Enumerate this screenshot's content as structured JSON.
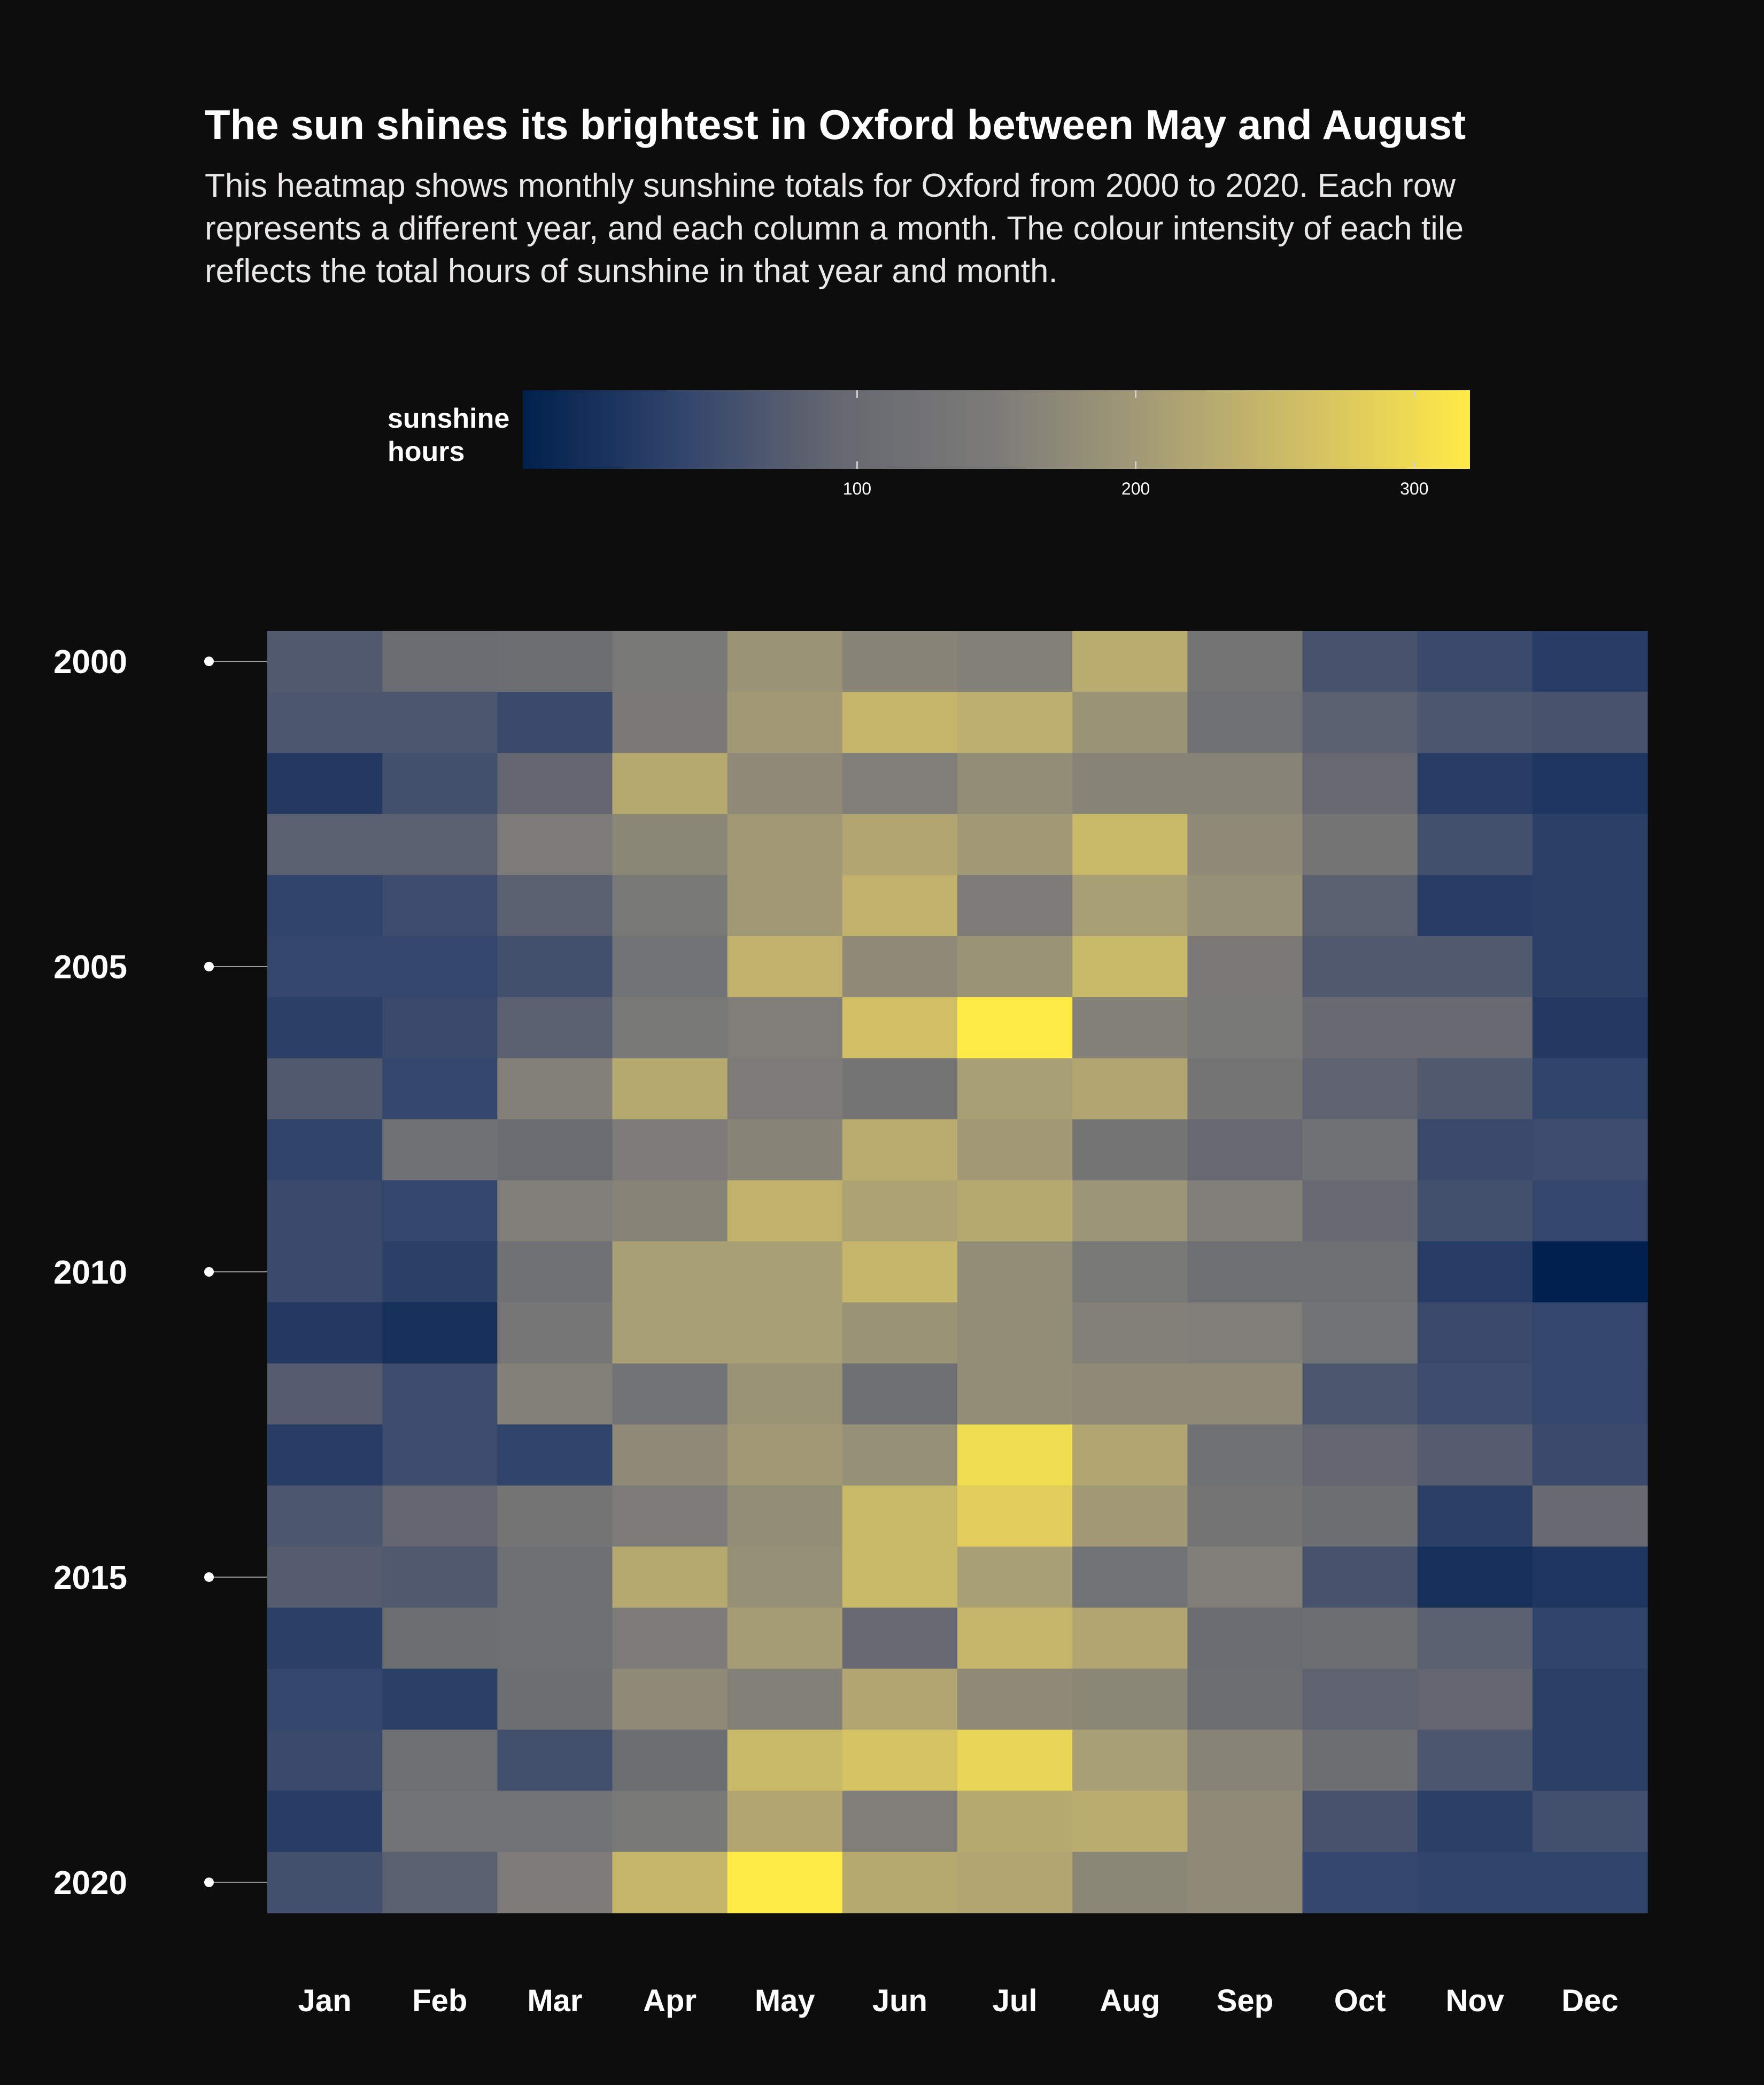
{
  "title": "The sun shines its brightest in Oxford between May and August",
  "subtitle": "This heatmap shows monthly sunshine totals for Oxford from 2000 to 2020. Each row represents a different year, and each column a month. The colour intensity of each tile reflects the total hours of sunshine in that year and month.",
  "colors": {
    "background": "#0e0d0e",
    "scale": [
      "#00204d",
      "#31446b",
      "#666870",
      "#7c7b78",
      "#a69d75",
      "#d3c164",
      "#ffea46"
    ]
  },
  "chart_data": {
    "type": "heatmap",
    "title": "The sun shines its brightest in Oxford between May and August",
    "legend": {
      "title_line1": "sunshine",
      "title_line2": "hours",
      "ticks": [
        100,
        200,
        300
      ],
      "tick_labels": [
        "100",
        "200",
        "300"
      ],
      "range": [
        -20,
        320
      ],
      "placement": "top"
    },
    "x_categories": [
      "Jan",
      "Feb",
      "Mar",
      "Apr",
      "May",
      "Jun",
      "Jul",
      "Aug",
      "Sep",
      "Oct",
      "Nov",
      "Dec"
    ],
    "y_categories": [
      "2000",
      "2001",
      "2002",
      "2003",
      "2004",
      "2005",
      "2006",
      "2007",
      "2008",
      "2009",
      "2010",
      "2011",
      "2012",
      "2013",
      "2014",
      "2015",
      "2016",
      "2017",
      "2018",
      "2019",
      "2020"
    ],
    "y_tick_labels": [
      "2000",
      "2005",
      "2010",
      "2015",
      "2020"
    ],
    "values": [
      [
        70,
        105,
        110,
        140,
        190,
        165,
        160,
        230,
        130,
        60,
        45,
        25
      ],
      [
        65,
        65,
        45,
        145,
        200,
        245,
        235,
        190,
        120,
        80,
        65,
        60
      ],
      [
        20,
        55,
        90,
        225,
        175,
        155,
        180,
        165,
        165,
        95,
        25,
        15
      ],
      [
        80,
        80,
        150,
        170,
        200,
        220,
        200,
        250,
        175,
        130,
        55,
        30
      ],
      [
        35,
        50,
        80,
        140,
        200,
        240,
        150,
        210,
        185,
        80,
        25,
        30
      ],
      [
        40,
        40,
        55,
        125,
        240,
        175,
        190,
        250,
        145,
        70,
        70,
        30
      ],
      [
        30,
        45,
        80,
        140,
        155,
        260,
        320,
        160,
        140,
        100,
        100,
        20
      ],
      [
        70,
        40,
        160,
        225,
        150,
        130,
        210,
        220,
        130,
        85,
        70,
        35
      ],
      [
        35,
        120,
        105,
        150,
        165,
        230,
        200,
        130,
        95,
        120,
        45,
        50
      ],
      [
        45,
        40,
        155,
        165,
        240,
        215,
        225,
        195,
        155,
        100,
        55,
        40
      ],
      [
        45,
        30,
        120,
        210,
        210,
        245,
        180,
        140,
        115,
        115,
        25,
        -20
      ],
      [
        20,
        5,
        135,
        210,
        210,
        190,
        180,
        160,
        155,
        125,
        45,
        40
      ],
      [
        75,
        50,
        160,
        125,
        190,
        115,
        180,
        175,
        175,
        65,
        50,
        40
      ],
      [
        25,
        50,
        35,
        175,
        200,
        185,
        300,
        220,
        120,
        90,
        75,
        45
      ],
      [
        65,
        90,
        130,
        150,
        180,
        250,
        280,
        200,
        130,
        110,
        30,
        100
      ],
      [
        75,
        70,
        115,
        225,
        185,
        250,
        210,
        125,
        155,
        60,
        5,
        15
      ],
      [
        30,
        110,
        115,
        150,
        205,
        95,
        245,
        220,
        105,
        110,
        80,
        35
      ],
      [
        40,
        30,
        110,
        175,
        160,
        220,
        175,
        170,
        110,
        85,
        90,
        30
      ],
      [
        45,
        115,
        55,
        110,
        250,
        265,
        290,
        210,
        165,
        110,
        65,
        30
      ],
      [
        25,
        125,
        125,
        140,
        220,
        155,
        225,
        230,
        175,
        60,
        30,
        55
      ],
      [
        55,
        80,
        150,
        245,
        320,
        225,
        220,
        170,
        175,
        40,
        35,
        35
      ]
    ]
  }
}
